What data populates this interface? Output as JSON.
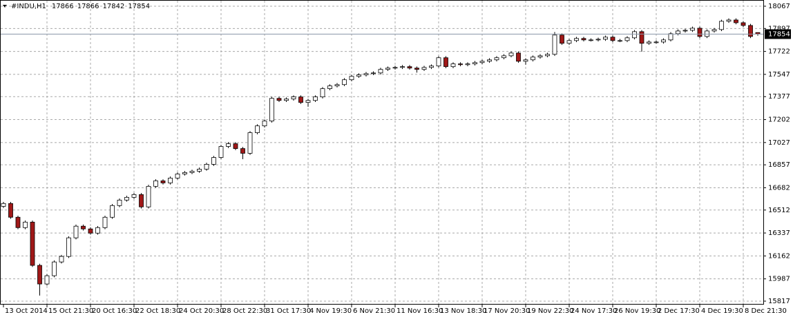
{
  "chart_data": {
    "type": "candlestick",
    "symbol": "#INDU,H1",
    "categories": [
      "13 Oct 2014",
      null,
      null,
      null,
      null,
      null,
      "15 Oct 21:30",
      null,
      null,
      null,
      null,
      null,
      "20 Oct 16:30",
      null,
      null,
      null,
      null,
      null,
      "22 Oct 18:30",
      null,
      null,
      null,
      null,
      null,
      "24 Oct 20:30",
      null,
      null,
      null,
      null,
      null,
      "28 Oct 22:30",
      null,
      null,
      null,
      null,
      null,
      "31 Oct 17:30",
      null,
      null,
      null,
      null,
      null,
      "4 Nov 19:30",
      null,
      null,
      null,
      null,
      null,
      "6 Nov 21:30",
      null,
      null,
      null,
      null,
      null,
      "11 Nov 16:30",
      null,
      null,
      null,
      null,
      null,
      "13 Nov 18:30",
      null,
      null,
      null,
      null,
      null,
      "17 Nov 20:30",
      null,
      null,
      null,
      null,
      null,
      "19 Nov 22:30",
      null,
      null,
      null,
      null,
      null,
      "24 Nov 17:30",
      null,
      null,
      null,
      null,
      null,
      "26 Nov 19:30",
      null,
      null,
      null,
      null,
      null,
      "2 Dec 17:30",
      null,
      null,
      null,
      null,
      null,
      "4 Dec 19:30",
      null,
      null,
      null,
      null,
      null,
      "8 Dec 21:30",
      null,
      null
    ],
    "open": [
      16540,
      16562,
      16457,
      16378,
      16420,
      16090,
      15948,
      16011,
      16116,
      16158,
      16300,
      16389,
      16368,
      16336,
      16378,
      16457,
      16546,
      16588,
      16609,
      16630,
      16536,
      16693,
      16735,
      16719,
      16756,
      16787,
      16798,
      16808,
      16824,
      16861,
      16913,
      16997,
      17018,
      16981,
      16945,
      17102,
      17154,
      17191,
      17364,
      17348,
      17359,
      17375,
      17333,
      17348,
      17375,
      17438,
      17459,
      17469,
      17506,
      17532,
      17543,
      17553,
      17558,
      17585,
      17595,
      17600,
      17606,
      17595,
      17585,
      17600,
      17611,
      17674,
      17606,
      17627,
      17621,
      17627,
      17637,
      17647,
      17658,
      17674,
      17689,
      17710,
      17647,
      17658,
      17679,
      17689,
      17700,
      17847,
      17784,
      17805,
      17821,
      17810,
      17810,
      17815,
      17831,
      17805,
      17805,
      17826,
      17873,
      17784,
      17794,
      17794,
      17810,
      17857,
      17878,
      17883,
      17899,
      17836,
      17878,
      17889,
      17952,
      17962,
      17941,
      17920,
      17866
    ],
    "high": [
      16574,
      16574,
      16469,
      16432,
      16432,
      16102,
      16023,
      16128,
      16170,
      16312,
      16401,
      16401,
      16380,
      16390,
      16469,
      16558,
      16600,
      16621,
      16642,
      16642,
      16705,
      16747,
      16747,
      16768,
      16799,
      16810,
      16820,
      16836,
      16873,
      16925,
      17009,
      17030,
      17030,
      16993,
      17114,
      17166,
      17203,
      17376,
      17376,
      17371,
      17387,
      17387,
      17360,
      17387,
      17450,
      17471,
      17481,
      17518,
      17544,
      17555,
      17565,
      17570,
      17597,
      17607,
      17612,
      17618,
      17618,
      17607,
      17612,
      17623,
      17686,
      17686,
      17639,
      17639,
      17639,
      17649,
      17659,
      17670,
      17686,
      17701,
      17722,
      17722,
      17670,
      17691,
      17701,
      17712,
      17870,
      17859,
      17817,
      17833,
      17833,
      17822,
      17827,
      17843,
      17843,
      17817,
      17838,
      17885,
      17885,
      17806,
      17806,
      17822,
      17869,
      17890,
      17895,
      17911,
      17911,
      17890,
      17901,
      17964,
      17974,
      17974,
      17953,
      17932,
      17866
    ],
    "low": [
      16528,
      16445,
      16366,
      16366,
      16078,
      15860,
      15936,
      15999,
      16104,
      16146,
      16288,
      16356,
      16324,
      16324,
      16366,
      16445,
      16534,
      16576,
      16597,
      16524,
      16524,
      16681,
      16707,
      16707,
      16744,
      16775,
      16786,
      16796,
      16812,
      16849,
      16901,
      16985,
      16969,
      16900,
      16933,
      17090,
      17142,
      17179,
      17336,
      17336,
      17347,
      17321,
      17300,
      17336,
      17363,
      17426,
      17447,
      17457,
      17494,
      17520,
      17531,
      17541,
      17546,
      17573,
      17583,
      17588,
      17583,
      17560,
      17573,
      17588,
      17599,
      17594,
      17594,
      17609,
      17609,
      17615,
      17625,
      17635,
      17646,
      17662,
      17677,
      17635,
      17620,
      17646,
      17667,
      17677,
      17688,
      17772,
      17772,
      17793,
      17798,
      17798,
      17798,
      17803,
      17793,
      17793,
      17793,
      17814,
      17720,
      17772,
      17782,
      17782,
      17798,
      17845,
      17866,
      17871,
      17824,
      17824,
      17866,
      17877,
      17940,
      17929,
      17908,
      17824,
      17842
    ],
    "close": [
      16562,
      16457,
      16378,
      16420,
      16090,
      15948,
      16011,
      16116,
      16158,
      16300,
      16389,
      16368,
      16336,
      16378,
      16457,
      16546,
      16588,
      16609,
      16630,
      16536,
      16693,
      16735,
      16719,
      16756,
      16787,
      16798,
      16808,
      16824,
      16861,
      16913,
      16997,
      17018,
      16981,
      16945,
      17102,
      17154,
      17191,
      17364,
      17348,
      17359,
      17375,
      17333,
      17348,
      17375,
      17438,
      17459,
      17469,
      17506,
      17532,
      17543,
      17553,
      17558,
      17585,
      17595,
      17600,
      17606,
      17595,
      17585,
      17600,
      17611,
      17674,
      17606,
      17627,
      17621,
      17627,
      17637,
      17647,
      17658,
      17674,
      17689,
      17710,
      17647,
      17658,
      17679,
      17689,
      17700,
      17847,
      17784,
      17805,
      17821,
      17810,
      17810,
      17815,
      17831,
      17805,
      17805,
      17826,
      17873,
      17784,
      17794,
      17794,
      17810,
      17857,
      17878,
      17883,
      17899,
      17836,
      17878,
      17889,
      17952,
      17962,
      17941,
      17920,
      17836,
      17854
    ],
    "up_color": "#ffffff",
    "down_color": "#a01818",
    "ylim": [
      15796,
      18109
    ],
    "yticks": [
      15817,
      15987,
      16162,
      16337,
      16512,
      16682,
      16857,
      17027,
      17202,
      17377,
      17547,
      17722,
      17897,
      18067
    ],
    "grid": true
  }
}
